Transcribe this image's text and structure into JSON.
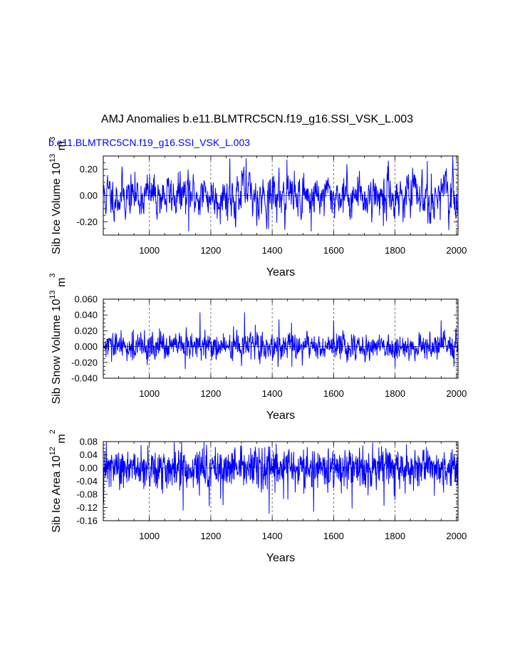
{
  "title": "AMJ Anomalies b.e11.BLMTRC5CN.f19_g16.SSI_VSK_L.003",
  "series_label": "b.e11.BLMTRC5CN.f19_g16.SSI_VSK_L.003",
  "colors": {
    "series": "#0000ff",
    "axes": "#000000",
    "grid": "#555555"
  },
  "chart_data": [
    {
      "type": "line",
      "name": "ice-volume",
      "ylabel": "Sib Ice Volume 10",
      "ylabel_exp": "13",
      "ylabel_unit": " m",
      "ylabel_unit_exp": "3",
      "xlabel": "Years",
      "xlim": [
        850,
        2005
      ],
      "ylim": [
        -0.3,
        0.3
      ],
      "xticks": [
        1000,
        1200,
        1400,
        1600,
        1800,
        2000
      ],
      "xtick_labels": [
        "1000",
        "1200",
        "1400",
        "1600",
        "1800",
        "2000"
      ],
      "yticks": [
        -0.2,
        0.0,
        0.2
      ],
      "ytick_labels": [
        "-0.20",
        "0.00",
        "0.20"
      ],
      "y_minor": 0.05,
      "noise": {
        "sd": 0.085,
        "phi": 0.55,
        "seed": 11
      },
      "spikes": [
        [
          1128,
          -0.27
        ],
        [
          1262,
          0.28
        ],
        [
          1315,
          0.28
        ],
        [
          1388,
          -0.25
        ],
        [
          1448,
          0.27
        ],
        [
          1527,
          -0.27
        ],
        [
          1762,
          -0.23
        ],
        [
          1905,
          0.26
        ],
        [
          1975,
          -0.26
        ]
      ]
    },
    {
      "type": "line",
      "name": "snow-volume",
      "ylabel": "Sib Snow Volume 10",
      "ylabel_exp": "13",
      "ylabel_unit": " m",
      "ylabel_unit_exp": "3",
      "xlabel": "Years",
      "xlim": [
        850,
        2005
      ],
      "ylim": [
        -0.04,
        0.06
      ],
      "xticks": [
        1000,
        1200,
        1400,
        1600,
        1800,
        2000
      ],
      "xtick_labels": [
        "1000",
        "1200",
        "1400",
        "1600",
        "1800",
        "2000"
      ],
      "yticks": [
        -0.04,
        -0.02,
        0.0,
        0.02,
        0.04,
        0.06
      ],
      "ytick_labels": [
        "-0.040",
        "-0.020",
        "0.000",
        "0.020",
        "0.040",
        "0.060"
      ],
      "y_minor": 0.005,
      "noise": {
        "sd": 0.0085,
        "phi": 0.25,
        "seed": 29
      },
      "spikes": [
        [
          1117,
          -0.028
        ],
        [
          1165,
          0.043
        ],
        [
          1310,
          0.043
        ],
        [
          1422,
          0.034
        ],
        [
          1464,
          -0.025
        ],
        [
          1600,
          0.033
        ],
        [
          1800,
          -0.026
        ],
        [
          1950,
          0.033
        ],
        [
          1992,
          -0.025
        ]
      ]
    },
    {
      "type": "line",
      "name": "ice-area",
      "ylabel": "Sib Ice Area 10",
      "ylabel_exp": "12",
      "ylabel_unit": " m",
      "ylabel_unit_exp": "2",
      "xlabel": "Years",
      "xlim": [
        850,
        2005
      ],
      "ylim": [
        -0.16,
        0.08
      ],
      "xticks": [
        1000,
        1200,
        1400,
        1600,
        1800,
        2000
      ],
      "xtick_labels": [
        "1000",
        "1200",
        "1400",
        "1600",
        "1800",
        "2000"
      ],
      "yticks": [
        -0.16,
        -0.12,
        -0.08,
        -0.04,
        0.0,
        0.04,
        0.08
      ],
      "ytick_labels": [
        "-0.16",
        "-0.12",
        "-0.08",
        "-0.04",
        "0.00",
        "0.04",
        "0.08"
      ],
      "y_minor": 0.01,
      "noise": {
        "sd": 0.027,
        "phi": 0.0,
        "seed": 47,
        "skew": true
      },
      "spikes": [
        [
          1110,
          -0.128
        ],
        [
          1195,
          -0.115
        ],
        [
          1390,
          -0.138
        ],
        [
          1535,
          -0.132
        ],
        [
          1660,
          -0.122
        ],
        [
          1800,
          -0.096
        ],
        [
          1330,
          0.06
        ],
        [
          1902,
          0.063
        ]
      ]
    }
  ]
}
